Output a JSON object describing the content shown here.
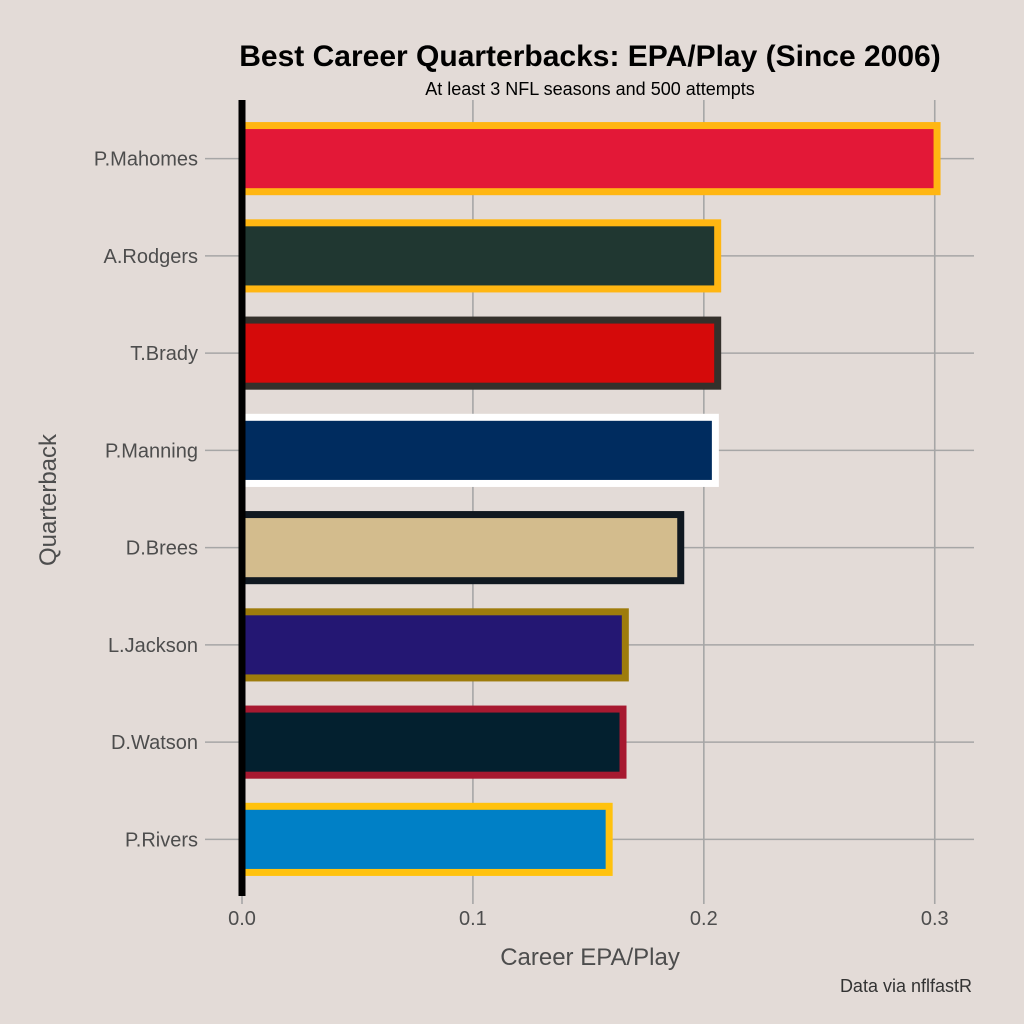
{
  "chart_data": {
    "type": "bar",
    "orientation": "horizontal",
    "title": "Best Career Quarterbacks: EPA/Play (Since 2006)",
    "subtitle": "At least 3 NFL seasons and 500 attempts",
    "xlabel": "Career EPA/Play",
    "ylabel": "Quarterback",
    "caption": "Data via nflfastR",
    "xlim": [
      0,
      0.317
    ],
    "xticks": [
      0.0,
      0.1,
      0.2,
      0.3
    ],
    "xtick_labels": [
      "0.0",
      "0.1",
      "0.2",
      "0.3"
    ],
    "grid": true,
    "categories": [
      "P.Mahomes",
      "A.Rodgers",
      "T.Brady",
      "P.Manning",
      "D.Brees",
      "L.Jackson",
      "D.Watson",
      "P.Rivers"
    ],
    "values": [
      0.301,
      0.206,
      0.206,
      0.205,
      0.19,
      0.166,
      0.165,
      0.159
    ],
    "fill_colors": [
      "#e31837",
      "#203731",
      "#d50a0a",
      "#002c5f",
      "#d3bc8d",
      "#241773",
      "#03202f",
      "#0080c6"
    ],
    "outline_colors": [
      "#ffb612",
      "#ffb612",
      "#34302b",
      "#ffffff",
      "#101820",
      "#9e7c0c",
      "#a71930",
      "#ffc20e"
    ]
  },
  "style": {
    "background": "#e3dbd7",
    "baseline_color": "#000000"
  }
}
